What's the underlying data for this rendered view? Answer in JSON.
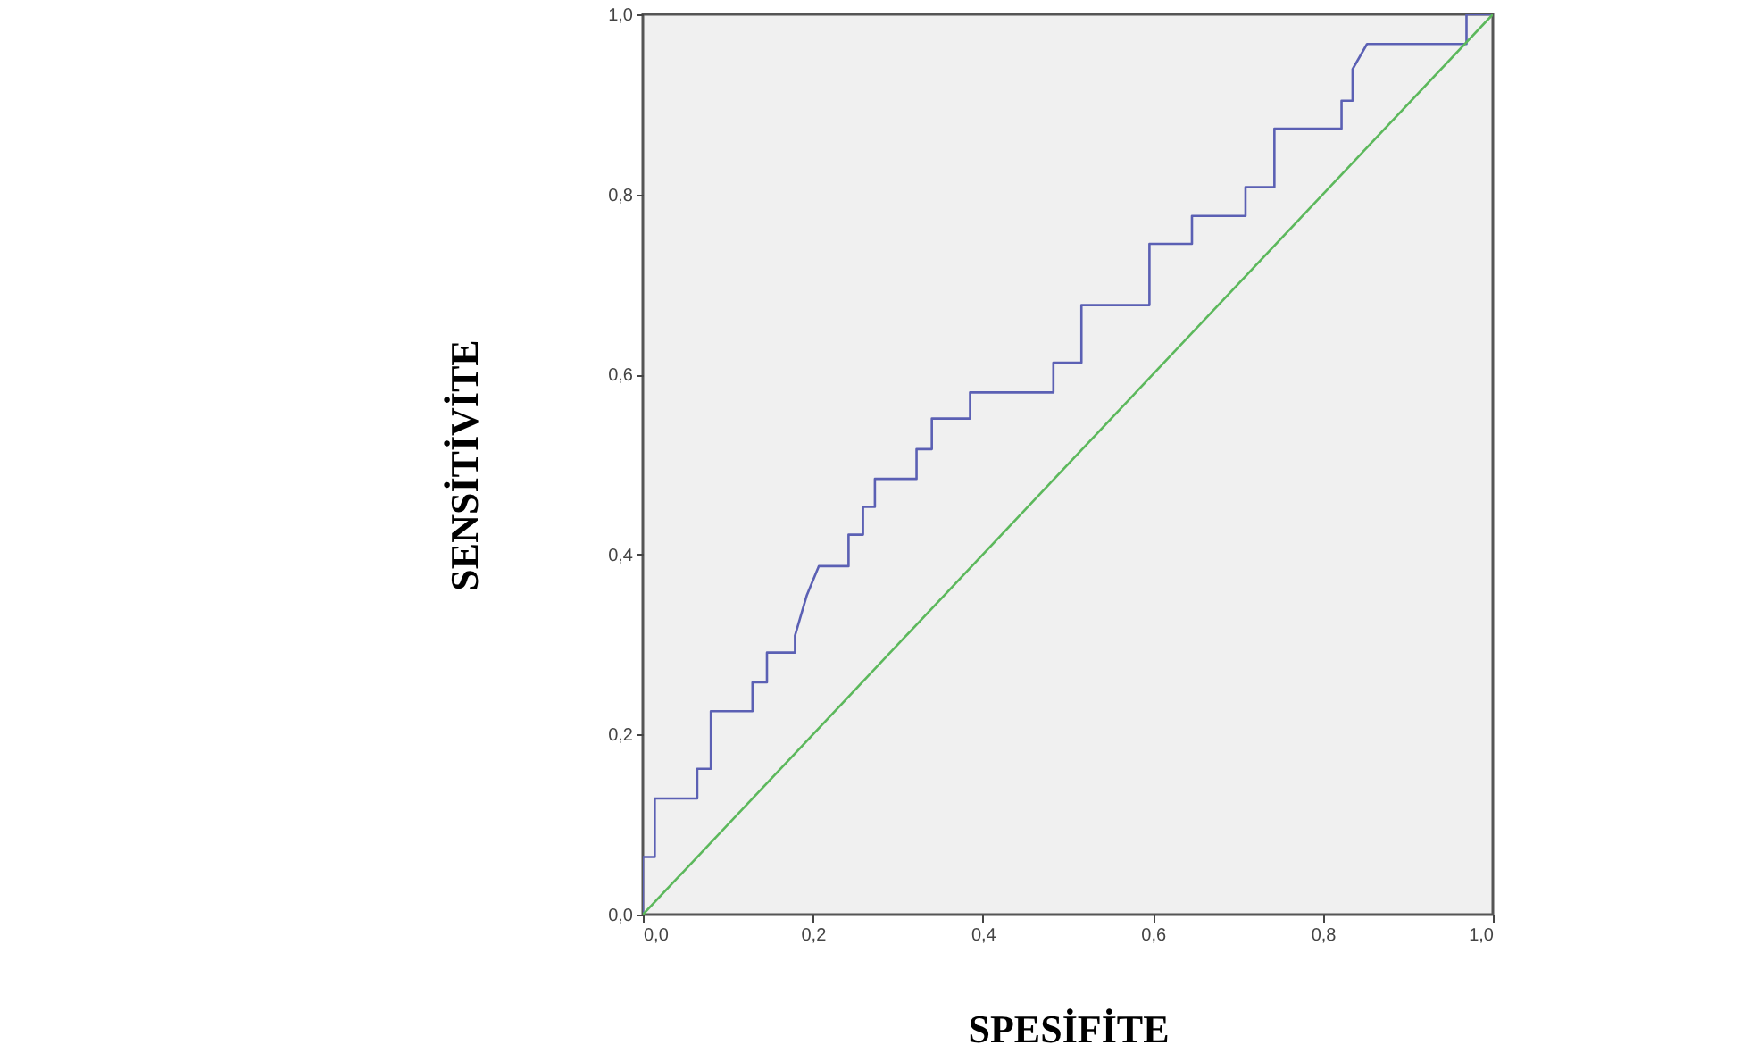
{
  "chart_data": {
    "type": "line",
    "xlabel": "SPESİFİTE",
    "ylabel": "SENSİTİVİTE",
    "xlim": [
      0,
      1
    ],
    "ylim": [
      0,
      1
    ],
    "xticks": [
      {
        "value": 0,
        "label": "0,0"
      },
      {
        "value": 0.2,
        "label": "0,2"
      },
      {
        "value": 0.4,
        "label": "0,4"
      },
      {
        "value": 0.6,
        "label": "0,6"
      },
      {
        "value": 0.8,
        "label": "0,8"
      },
      {
        "value": 1,
        "label": "1,0"
      }
    ],
    "yticks": [
      {
        "value": 0,
        "label": "0,0"
      },
      {
        "value": 0.2,
        "label": "0,2"
      },
      {
        "value": 0.4,
        "label": "0,4"
      },
      {
        "value": 0.6,
        "label": "0,6"
      },
      {
        "value": 0.8,
        "label": "0,8"
      },
      {
        "value": 1,
        "label": "1,0"
      }
    ],
    "grid": false,
    "line_style": "solid",
    "marker": "none",
    "series": [
      {
        "color": "#5b60b4",
        "x": [
          0,
          0,
          0.014,
          0.014,
          0.064,
          0.064,
          0.08,
          0.08,
          0.129,
          0.129,
          0.146,
          0.146,
          0.179,
          0.179,
          0.193,
          0.207,
          0.242,
          0.242,
          0.259,
          0.259,
          0.273,
          0.273,
          0.322,
          0.322,
          0.34,
          0.34,
          0.385,
          0.385,
          0.483,
          0.483,
          0.516,
          0.516,
          0.596,
          0.596,
          0.646,
          0.646,
          0.709,
          0.709,
          0.743,
          0.743,
          0.822,
          0.822,
          0.835,
          0.835,
          0.852,
          0.969,
          0.969,
          1
        ],
        "values": [
          0,
          0.064,
          0.064,
          0.129,
          0.129,
          0.162,
          0.162,
          0.226,
          0.226,
          0.258,
          0.258,
          0.291,
          0.291,
          0.31,
          0.355,
          0.387,
          0.387,
          0.422,
          0.422,
          0.453,
          0.453,
          0.484,
          0.484,
          0.517,
          0.517,
          0.551,
          0.551,
          0.58,
          0.58,
          0.613,
          0.613,
          0.677,
          0.677,
          0.745,
          0.745,
          0.776,
          0.776,
          0.808,
          0.808,
          0.873,
          0.873,
          0.904,
          0.904,
          0.939,
          0.967,
          0.967,
          1,
          1
        ]
      },
      {
        "color": "#5cb85c",
        "x": [
          0,
          1
        ],
        "values": [
          0,
          1
        ]
      }
    ]
  }
}
